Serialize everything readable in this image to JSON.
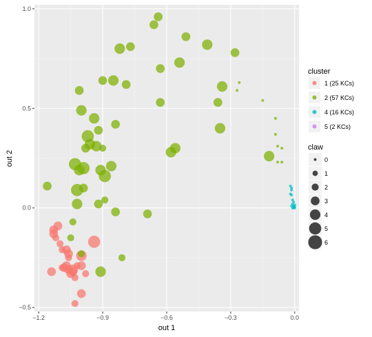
{
  "chart_data": {
    "type": "scatter",
    "xlabel": "out 1",
    "ylabel": "out 2",
    "xlim": [
      -1.22,
      0.02
    ],
    "ylim": [
      -0.52,
      1.02
    ],
    "x_ticks": [
      {
        "value": -1.2,
        "label": "−1.2"
      },
      {
        "value": -0.9,
        "label": "−0.9"
      },
      {
        "value": -0.6,
        "label": "−0.6"
      },
      {
        "value": -0.3,
        "label": "−0.3"
      },
      {
        "value": 0.0,
        "label": "0.0"
      }
    ],
    "y_ticks": [
      {
        "value": -0.5,
        "label": "−0.5"
      },
      {
        "value": 0.0,
        "label": "0.0"
      },
      {
        "value": 0.5,
        "label": "0.5"
      },
      {
        "value": 1.0,
        "label": "1.0"
      }
    ],
    "grid": true,
    "colors": {
      "panel_bg": "#ebebeb",
      "grid_major": "#ffffff",
      "cluster_1": "#f8766d",
      "cluster_2": "#7cae00",
      "cluster_4": "#00bfc4",
      "cluster_5": "#c77cff"
    },
    "legend_cluster": {
      "title": "cluster",
      "entries": [
        {
          "label": "1 (25 KCs)",
          "color": "#f8766d"
        },
        {
          "label": "2 (57 KCs)",
          "color": "#7cae00"
        },
        {
          "label": "4 (16 KCs)",
          "color": "#00bfc4"
        },
        {
          "label": "5 (2 KCs)",
          "color": "#c77cff"
        }
      ]
    },
    "legend_claw": {
      "title": "claw",
      "entries": [
        {
          "label": "0",
          "value": 0
        },
        {
          "label": "1",
          "value": 1
        },
        {
          "label": "2",
          "value": 2
        },
        {
          "label": "3",
          "value": 3
        },
        {
          "label": "4",
          "value": 4
        },
        {
          "label": "5",
          "value": 5
        },
        {
          "label": "6",
          "value": 6
        }
      ]
    },
    "series": [
      {
        "name": "1 (25 KCs)",
        "color": "#f8766d",
        "points": [
          [
            -1.11,
            -0.09,
            3
          ],
          [
            -1.13,
            -0.11,
            3
          ],
          [
            -1.13,
            -0.13,
            3
          ],
          [
            -1.12,
            -0.15,
            2
          ],
          [
            -1.1,
            -0.18,
            2
          ],
          [
            -1.07,
            -0.21,
            3
          ],
          [
            -1.06,
            -0.23,
            3
          ],
          [
            -1.06,
            -0.25,
            2
          ],
          [
            -1.07,
            -0.29,
            3
          ],
          [
            -1.06,
            -0.31,
            3
          ],
          [
            -1.04,
            -0.31,
            4
          ],
          [
            -1.04,
            -0.32,
            3
          ],
          [
            -1.02,
            -0.29,
            2
          ],
          [
            -1.0,
            -0.24,
            4
          ],
          [
            -1.0,
            -0.29,
            3
          ],
          [
            -0.98,
            -0.33,
            2
          ],
          [
            -1.08,
            -0.3,
            3
          ],
          [
            -1.09,
            -0.3,
            2
          ],
          [
            -1.14,
            -0.32,
            3
          ],
          [
            -1.05,
            -0.33,
            3
          ],
          [
            -1.03,
            -0.35,
            2
          ],
          [
            -1.0,
            -0.43,
            3
          ],
          [
            -1.03,
            -0.48,
            2
          ],
          [
            -0.94,
            -0.17,
            5
          ],
          [
            -1.09,
            -0.21,
            2
          ]
        ]
      },
      {
        "name": "2 (57 KCs)",
        "color": "#7cae00",
        "points": [
          [
            -0.64,
            0.96,
            3
          ],
          [
            -0.66,
            0.92,
            3
          ],
          [
            -0.51,
            0.86,
            3
          ],
          [
            -0.41,
            0.82,
            4
          ],
          [
            -0.28,
            0.78,
            3
          ],
          [
            -0.82,
            0.8,
            4
          ],
          [
            -0.77,
            0.81,
            3
          ],
          [
            -0.63,
            0.7,
            3
          ],
          [
            -0.54,
            0.73,
            4
          ],
          [
            -1.01,
            0.59,
            3
          ],
          [
            -0.9,
            0.64,
            3
          ],
          [
            -0.85,
            0.64,
            4
          ],
          [
            -0.79,
            0.62,
            3
          ],
          [
            -0.36,
            0.53,
            3
          ],
          [
            -0.34,
            0.61,
            4
          ],
          [
            -1.0,
            0.49,
            4
          ],
          [
            -0.94,
            0.45,
            4
          ],
          [
            -0.92,
            0.39,
            3
          ],
          [
            -0.84,
            0.42,
            3
          ],
          [
            -0.93,
            0.31,
            4
          ],
          [
            -0.96,
            0.32,
            4
          ],
          [
            -0.97,
            0.36,
            5
          ],
          [
            -0.98,
            0.3,
            3
          ],
          [
            -0.9,
            0.3,
            2
          ],
          [
            -0.63,
            0.53,
            3
          ],
          [
            -0.35,
            0.4,
            4
          ],
          [
            -0.58,
            0.28,
            4
          ],
          [
            -0.56,
            0.3,
            4
          ],
          [
            -1.03,
            0.22,
            5
          ],
          [
            -0.99,
            0.2,
            5
          ],
          [
            -1.01,
            0.19,
            4
          ],
          [
            -1.02,
            0.09,
            5
          ],
          [
            -1.02,
            0.02,
            4
          ],
          [
            -0.99,
            0.1,
            3
          ],
          [
            -0.91,
            0.19,
            4
          ],
          [
            -0.89,
            0.16,
            5
          ],
          [
            -0.86,
            0.21,
            4
          ],
          [
            -0.92,
            0.02,
            3
          ],
          [
            -0.89,
            0.04,
            2
          ],
          [
            -0.84,
            -0.02,
            3
          ],
          [
            -0.69,
            -0.03,
            3
          ],
          [
            -1.16,
            0.11,
            3
          ],
          [
            -1.04,
            -0.07,
            2
          ],
          [
            -1.05,
            -0.15,
            2
          ],
          [
            -1.0,
            -0.23,
            2
          ],
          [
            -0.91,
            -0.32,
            4
          ],
          [
            -0.81,
            -0.25,
            2
          ],
          [
            -0.12,
            0.26,
            4
          ],
          [
            -0.26,
            0.63,
            0
          ],
          [
            -0.27,
            0.59,
            0
          ],
          [
            -0.15,
            0.54,
            0
          ],
          [
            -0.09,
            0.45,
            0
          ],
          [
            -0.09,
            0.37,
            0
          ],
          [
            -0.08,
            0.31,
            0
          ],
          [
            -0.06,
            0.3,
            0
          ],
          [
            -0.08,
            0.23,
            0
          ],
          [
            -0.06,
            0.23,
            0
          ]
        ]
      },
      {
        "name": "4 (16 KCs)",
        "color": "#00bfc4",
        "points": [
          [
            -0.02,
            0.11,
            0
          ],
          [
            -0.015,
            0.09,
            0
          ],
          [
            -0.02,
            0.07,
            0
          ],
          [
            -0.015,
            0.065,
            0
          ],
          [
            -0.01,
            0.04,
            0
          ],
          [
            -0.005,
            0.03,
            0
          ],
          [
            -0.01,
            0.02,
            0
          ],
          [
            -0.005,
            0.01,
            0
          ],
          [
            -0.015,
            0.01,
            0
          ],
          [
            0.0,
            0.0,
            0
          ],
          [
            -0.005,
            0.005,
            0
          ],
          [
            0.0,
            0.015,
            0
          ],
          [
            -0.01,
            0.0,
            0
          ],
          [
            0.0,
            0.005,
            0
          ],
          [
            -0.005,
            0.0,
            0
          ],
          [
            -0.015,
            0.1,
            0
          ]
        ]
      }
    ]
  }
}
